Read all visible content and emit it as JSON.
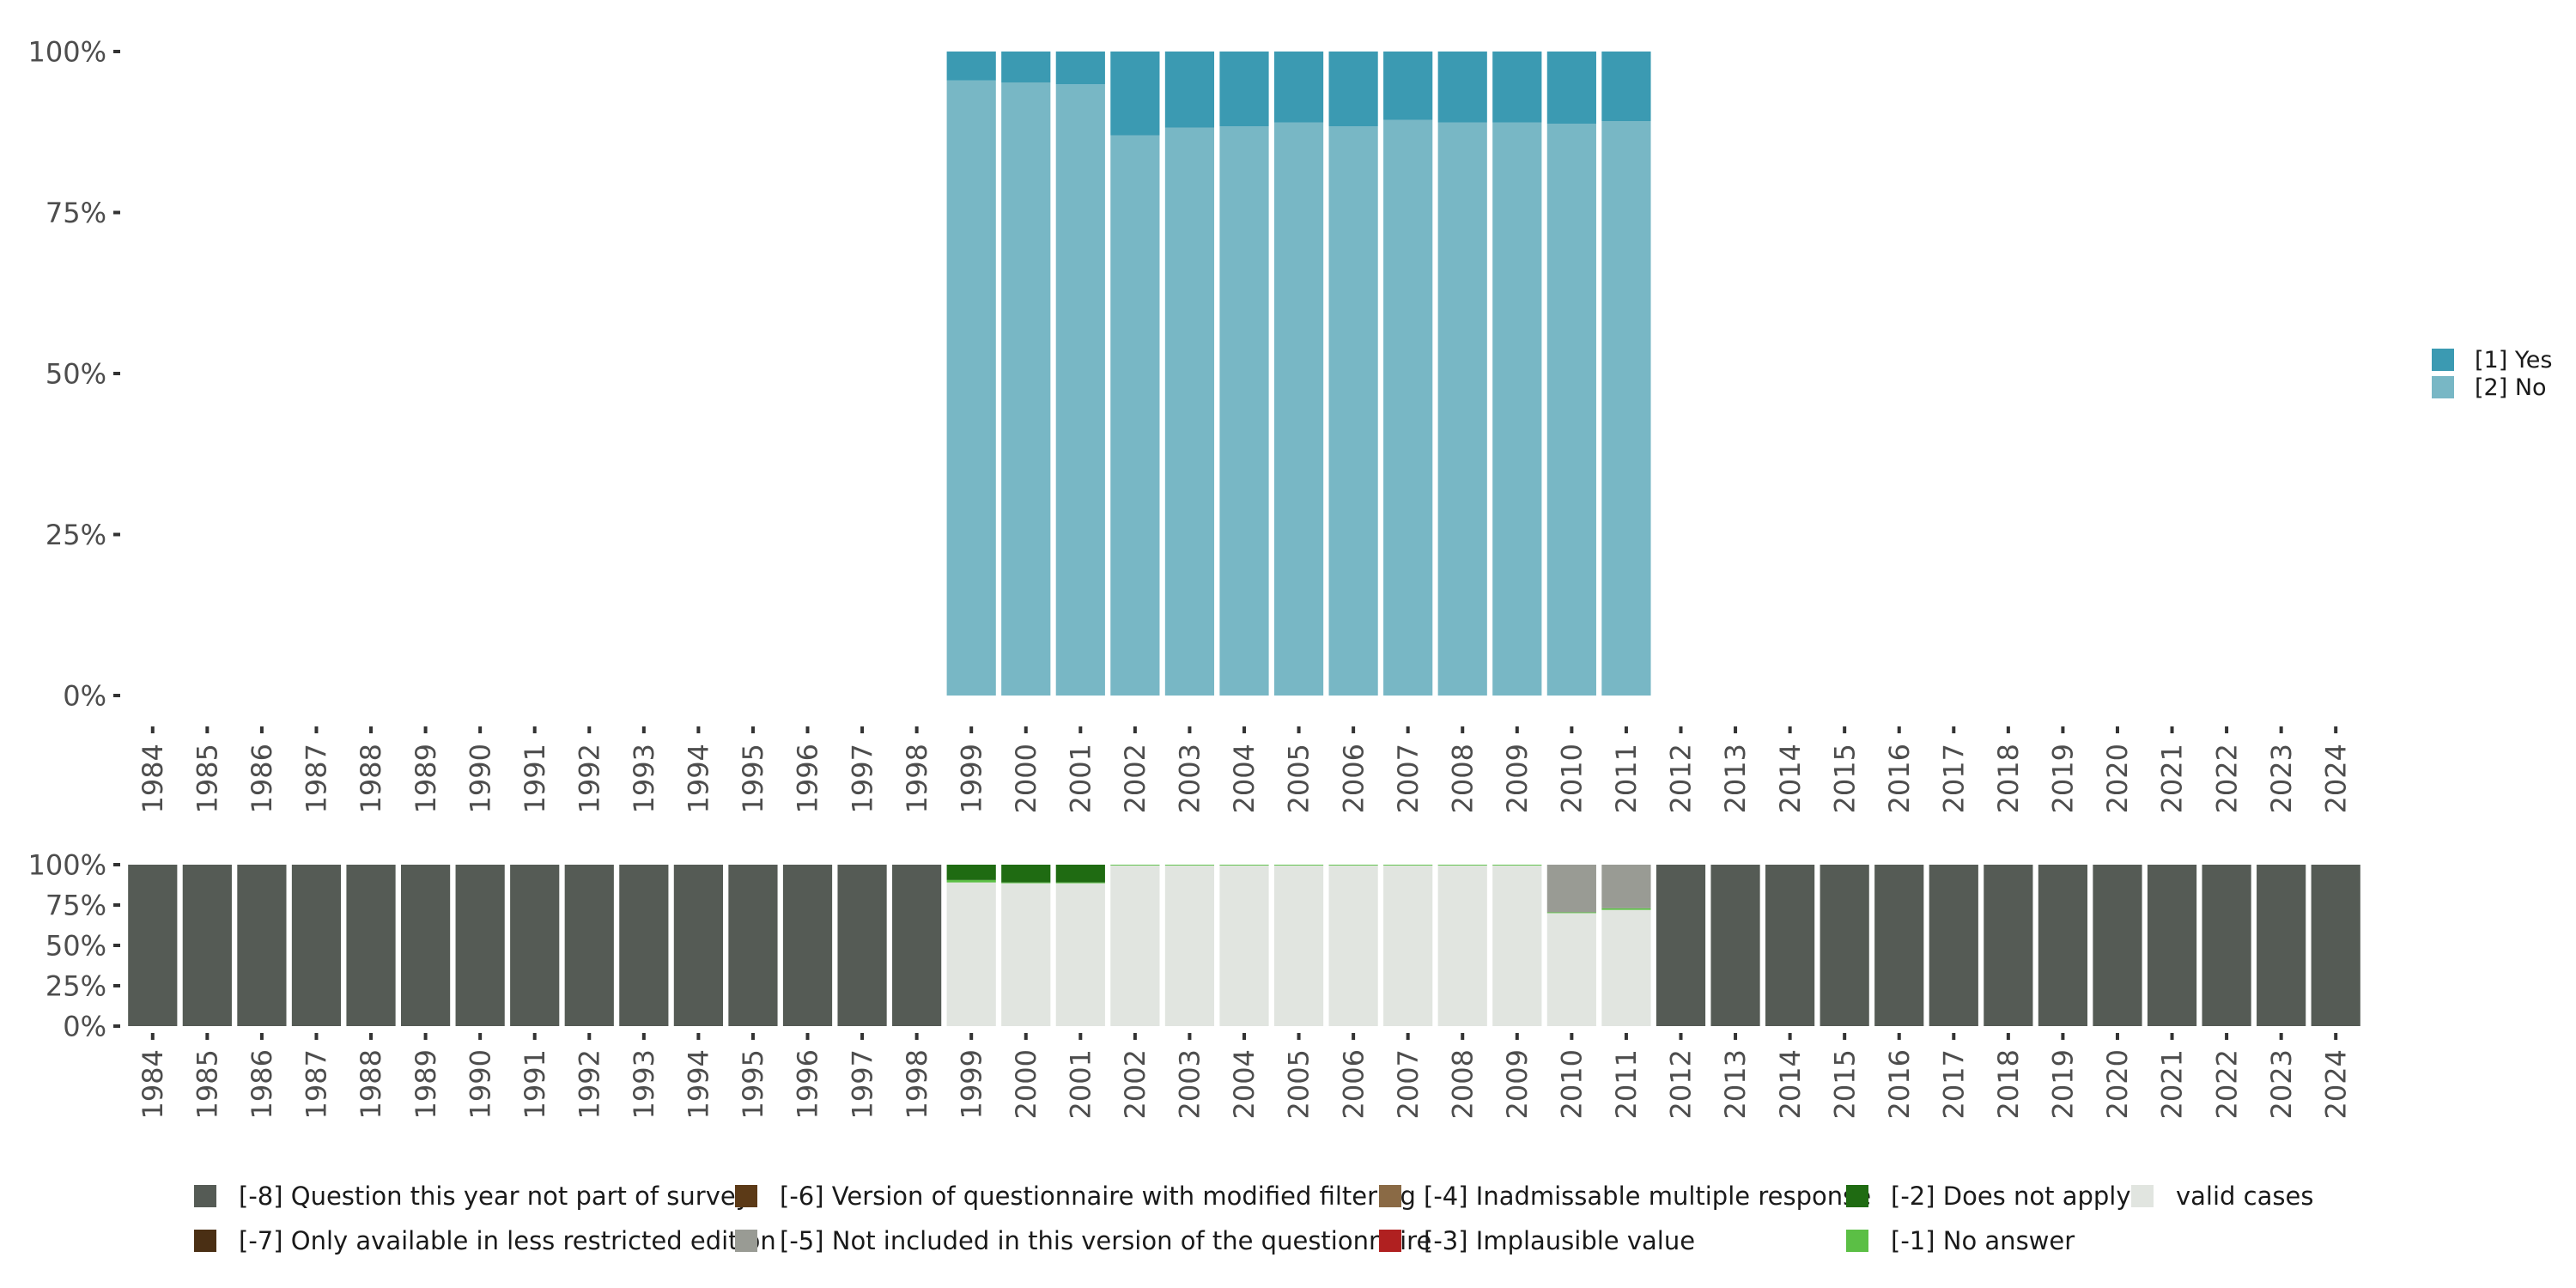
{
  "chart_data": [
    {
      "type": "bar",
      "stacked": true,
      "categories": [
        "1984",
        "1985",
        "1986",
        "1987",
        "1988",
        "1989",
        "1990",
        "1991",
        "1992",
        "1993",
        "1994",
        "1995",
        "1996",
        "1997",
        "1998",
        "1999",
        "2000",
        "2001",
        "2002",
        "2003",
        "2004",
        "2005",
        "2006",
        "2007",
        "2008",
        "2009",
        "2010",
        "2011",
        "2012",
        "2013",
        "2014",
        "2015",
        "2016",
        "2017",
        "2018",
        "2019",
        "2020",
        "2021",
        "2022",
        "2023",
        "2024"
      ],
      "y_ticks": [
        "0%",
        "25%",
        "50%",
        "75%",
        "100%"
      ],
      "ylim": [
        0,
        100
      ],
      "legend_position": "right",
      "series": [
        {
          "name": "[2] No",
          "color": "#78b7c5",
          "values": [
            null,
            null,
            null,
            null,
            null,
            null,
            null,
            null,
            null,
            null,
            null,
            null,
            null,
            null,
            null,
            95.5,
            95.2,
            94.9,
            87.0,
            88.2,
            88.4,
            89.0,
            88.4,
            89.4,
            89.0,
            89.0,
            88.8,
            89.2,
            null,
            null,
            null,
            null,
            null,
            null,
            null,
            null,
            null,
            null,
            null,
            null,
            null
          ]
        },
        {
          "name": "[1] Yes",
          "color": "#3b9ab2",
          "values": [
            null,
            null,
            null,
            null,
            null,
            null,
            null,
            null,
            null,
            null,
            null,
            null,
            null,
            null,
            null,
            4.5,
            4.8,
            5.1,
            13.0,
            11.8,
            11.6,
            11.0,
            11.6,
            10.6,
            11.0,
            11.0,
            11.2,
            10.8,
            null,
            null,
            null,
            null,
            null,
            null,
            null,
            null,
            null,
            null,
            null,
            null,
            null
          ]
        }
      ],
      "legend": [
        {
          "label": "[1] Yes",
          "color": "#3b9ab2"
        },
        {
          "label": "[2] No",
          "color": "#78b7c5"
        }
      ]
    },
    {
      "type": "bar",
      "stacked": true,
      "categories": [
        "1984",
        "1985",
        "1986",
        "1987",
        "1988",
        "1989",
        "1990",
        "1991",
        "1992",
        "1993",
        "1994",
        "1995",
        "1996",
        "1997",
        "1998",
        "1999",
        "2000",
        "2001",
        "2002",
        "2003",
        "2004",
        "2005",
        "2006",
        "2007",
        "2008",
        "2009",
        "2010",
        "2011",
        "2012",
        "2013",
        "2014",
        "2015",
        "2016",
        "2017",
        "2018",
        "2019",
        "2020",
        "2021",
        "2022",
        "2023",
        "2024"
      ],
      "y_ticks": [
        "0%",
        "25%",
        "50%",
        "75%",
        "100%"
      ],
      "ylim": [
        0,
        100
      ],
      "legend_position": "bottom",
      "series": [
        {
          "name": "valid cases",
          "color": "#e1e5e0",
          "values": [
            0,
            0,
            0,
            0,
            0,
            0,
            0,
            0,
            0,
            0,
            0,
            0,
            0,
            0,
            0,
            89,
            88.5,
            88.5,
            99.5,
            99.5,
            99.5,
            99.5,
            99.5,
            99.5,
            99.5,
            99.5,
            70,
            72,
            0,
            0,
            0,
            0,
            0,
            0,
            0,
            0,
            0,
            0,
            0,
            0,
            0
          ]
        },
        {
          "name": "[-1] No answer",
          "color": "#5bbf45",
          "values": [
            0,
            0,
            0,
            0,
            0,
            0,
            0,
            0,
            0,
            0,
            0,
            0,
            0,
            0,
            0,
            1.5,
            0.5,
            0.5,
            0.5,
            0.5,
            0.5,
            0.5,
            0.5,
            0.5,
            0.5,
            0.5,
            0.5,
            1.0,
            0,
            0,
            0,
            0,
            0,
            0,
            0,
            0,
            0,
            0,
            0,
            0,
            0
          ]
        },
        {
          "name": "[-5] Not included in this version of the questionnaire",
          "color": "#999b94",
          "values": [
            0,
            0,
            0,
            0,
            0,
            0,
            0,
            0,
            0,
            0,
            0,
            0,
            0,
            0,
            0,
            0,
            0,
            0,
            0,
            0,
            0,
            0,
            0,
            0,
            0,
            0,
            29.5,
            27.0,
            0,
            0,
            0,
            0,
            0,
            0,
            0,
            0,
            0,
            0,
            0,
            0,
            0
          ]
        },
        {
          "name": "[-2] Does not apply",
          "color": "#1f6b12",
          "values": [
            0,
            0,
            0,
            0,
            0,
            0,
            0,
            0,
            0,
            0,
            0,
            0,
            0,
            0,
            0,
            9.5,
            11,
            11,
            0,
            0,
            0,
            0,
            0,
            0,
            0,
            0,
            0,
            0,
            0,
            0,
            0,
            0,
            0,
            0,
            0,
            0,
            0,
            0,
            0,
            0,
            0
          ]
        },
        {
          "name": "[-8] Question this year not part of survey",
          "color": "#555b55",
          "values": [
            100,
            100,
            100,
            100,
            100,
            100,
            100,
            100,
            100,
            100,
            100,
            100,
            100,
            100,
            100,
            0,
            0,
            0,
            0,
            0,
            0,
            0,
            0,
            0,
            0,
            0,
            0,
            0,
            100,
            100,
            100,
            100,
            100,
            100,
            100,
            100,
            100,
            100,
            100,
            100,
            100
          ]
        }
      ],
      "legend": [
        {
          "label": "[-8] Question this year not part of survey",
          "color": "#555b55"
        },
        {
          "label": "[-7] Only available in less restricted edition",
          "color": "#4a2f14"
        },
        {
          "label": "[-6] Version of questionnaire with modified filtering",
          "color": "#5c3a17"
        },
        {
          "label": "[-5] Not included in this version of the questionnaire",
          "color": "#999b94"
        },
        {
          "label": "[-4] Inadmissable multiple response",
          "color": "#8a6a45"
        },
        {
          "label": "[-3] Implausible value",
          "color": "#b02020"
        },
        {
          "label": "[-2] Does not apply",
          "color": "#1f6b12"
        },
        {
          "label": "[-1] No answer",
          "color": "#5bbf45"
        },
        {
          "label": "valid cases",
          "color": "#e1e5e0"
        }
      ]
    }
  ]
}
